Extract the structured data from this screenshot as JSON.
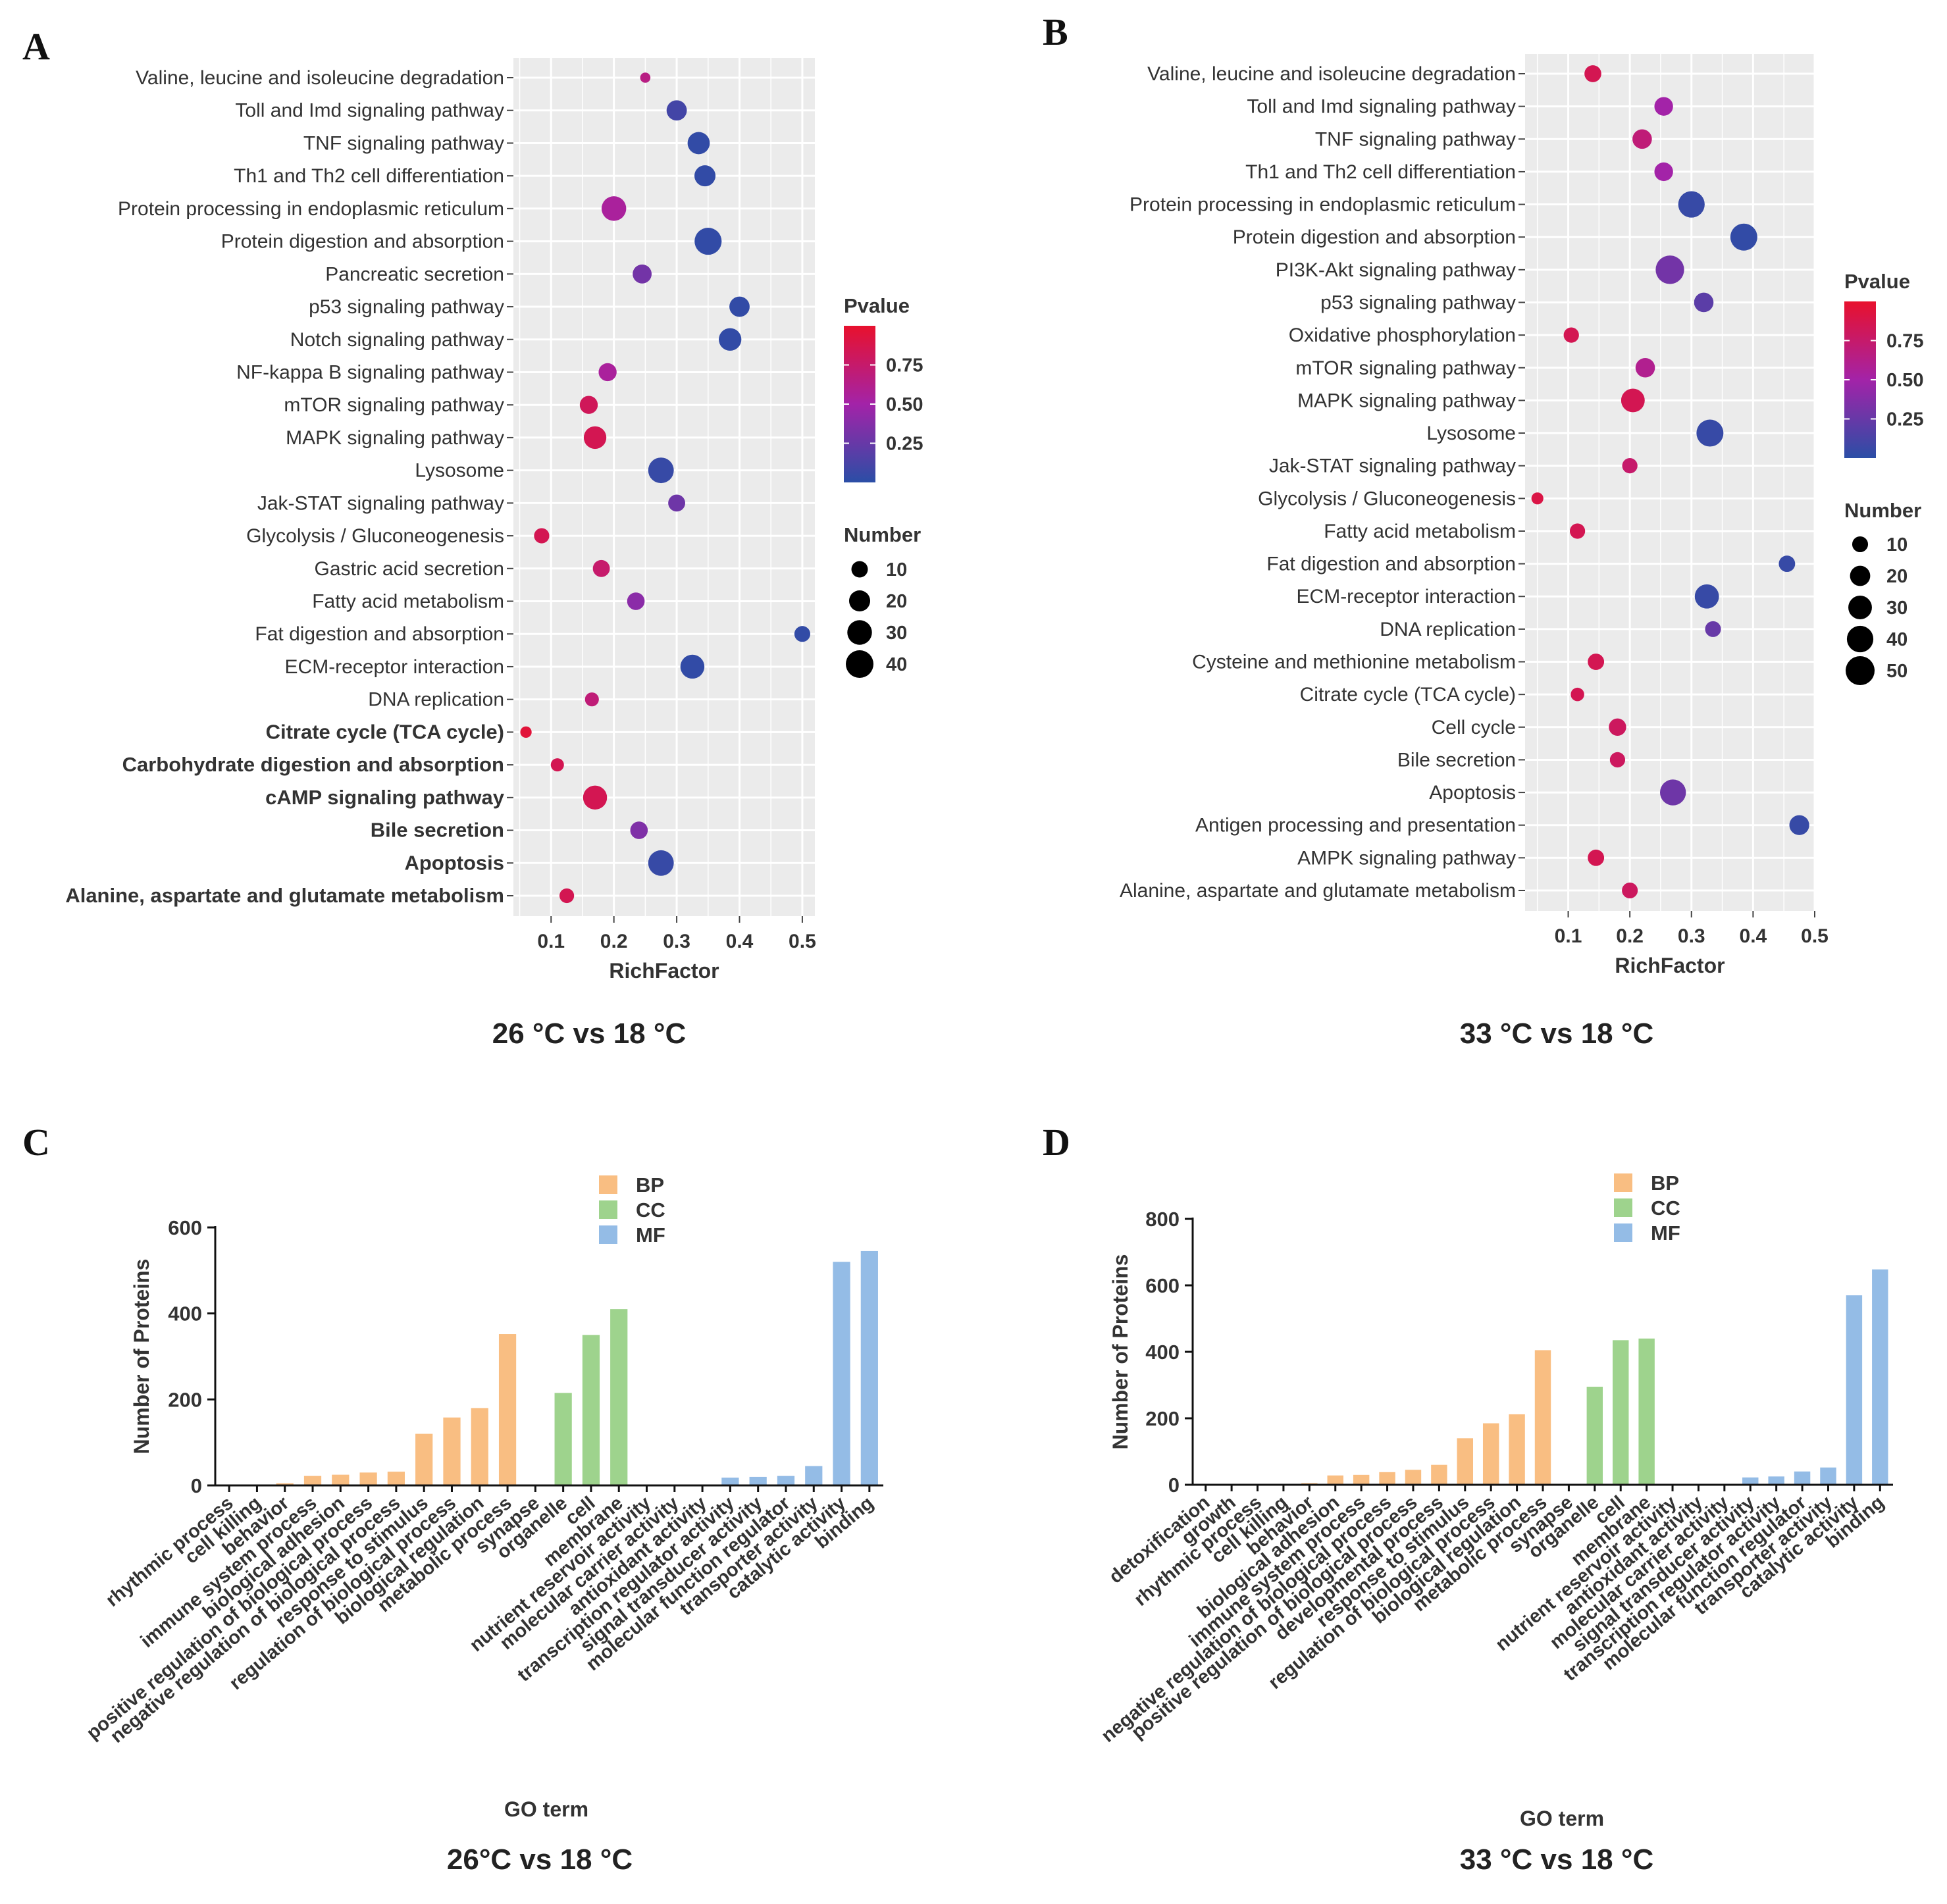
{
  "colors": {
    "pvalue_low": "#2B4EA6",
    "pvalue_mid": "#A323A8",
    "pvalue_high": "#E8112D",
    "bp": "#F9BE82",
    "cc": "#9ED38D",
    "mf": "#94BCE6",
    "panel_bg": "#EBEBEB"
  },
  "chart_data": [
    {
      "id": "A",
      "type": "scatter",
      "panel_label": "A",
      "caption": "26 °C vs 18 °C",
      "xlabel": "RichFactor",
      "xlim": [
        0.04,
        0.52
      ],
      "xticks": [
        0.1,
        0.2,
        0.3,
        0.4,
        0.5
      ],
      "xtick_labels": [
        "0.1",
        "0.2",
        "0.3",
        "0.4",
        "0.5"
      ],
      "legend_color_title": "Pvalue",
      "legend_color_ticks": [
        "0.75",
        "0.50",
        "0.25"
      ],
      "legend_size_title": "Number",
      "legend_size_entries": [
        "10",
        "20",
        "30",
        "40"
      ],
      "legend_size_values": [
        10,
        20,
        30,
        40
      ],
      "bold_from_index": 20,
      "points": [
        {
          "term": "Valine, leucine and isoleucine degradation",
          "rich": 0.25,
          "pvalue": 0.65,
          "number": 2
        },
        {
          "term": "Toll and Imd signaling pathway",
          "rich": 0.3,
          "pvalue": 0.1,
          "number": 18
        },
        {
          "term": "TNF signaling pathway",
          "rich": 0.335,
          "pvalue": 0.03,
          "number": 23
        },
        {
          "term": "Th1 and Th2 cell differentiation",
          "rich": 0.345,
          "pvalue": 0.03,
          "number": 20
        },
        {
          "term": "Protein processing in endoplasmic reticulum",
          "rich": 0.2,
          "pvalue": 0.55,
          "number": 30
        },
        {
          "term": "Protein digestion and absorption",
          "rich": 0.35,
          "pvalue": 0.03,
          "number": 38
        },
        {
          "term": "Pancreatic secretion",
          "rich": 0.245,
          "pvalue": 0.3,
          "number": 15
        },
        {
          "term": "p53 signaling pathway",
          "rich": 0.4,
          "pvalue": 0.03,
          "number": 18
        },
        {
          "term": "Notch signaling pathway",
          "rich": 0.385,
          "pvalue": 0.03,
          "number": 24
        },
        {
          "term": "NF-kappa B signaling pathway",
          "rich": 0.19,
          "pvalue": 0.55,
          "number": 13
        },
        {
          "term": "mTOR signaling pathway",
          "rich": 0.16,
          "pvalue": 0.82,
          "number": 13
        },
        {
          "term": "MAPK signaling pathway",
          "rich": 0.17,
          "pvalue": 0.85,
          "number": 24
        },
        {
          "term": "Lysosome",
          "rich": 0.275,
          "pvalue": 0.05,
          "number": 33
        },
        {
          "term": "Jak-STAT signaling pathway",
          "rich": 0.3,
          "pvalue": 0.28,
          "number": 11
        },
        {
          "term": "Glycolysis / Gluconeogenesis",
          "rich": 0.085,
          "pvalue": 0.85,
          "number": 8
        },
        {
          "term": "Gastric acid secretion",
          "rich": 0.18,
          "pvalue": 0.75,
          "number": 11
        },
        {
          "term": "Fatty acid metabolism",
          "rich": 0.235,
          "pvalue": 0.4,
          "number": 12
        },
        {
          "term": "Fat digestion and absorption",
          "rich": 0.5,
          "pvalue": 0.03,
          "number": 9
        },
        {
          "term": "ECM-receptor interaction",
          "rich": 0.325,
          "pvalue": 0.03,
          "number": 28
        },
        {
          "term": "DNA replication",
          "rich": 0.165,
          "pvalue": 0.7,
          "number": 6
        },
        {
          "term": "Citrate cycle (TCA cycle)",
          "rich": 0.06,
          "pvalue": 0.95,
          "number": 3
        },
        {
          "term": "Carbohydrate digestion and absorption",
          "rich": 0.11,
          "pvalue": 0.85,
          "number": 5
        },
        {
          "term": "cAMP signaling pathway",
          "rich": 0.17,
          "pvalue": 0.85,
          "number": 28
        },
        {
          "term": "Bile secretion",
          "rich": 0.24,
          "pvalue": 0.35,
          "number": 12
        },
        {
          "term": "Apoptosis",
          "rich": 0.275,
          "pvalue": 0.05,
          "number": 33
        },
        {
          "term": "Alanine, aspartate and glutamate metabolism",
          "rich": 0.125,
          "pvalue": 0.85,
          "number": 7
        }
      ]
    },
    {
      "id": "B",
      "type": "scatter",
      "panel_label": "B",
      "caption": "33 °C vs 18 °C",
      "xlabel": "RichFactor",
      "xlim": [
        0.03,
        0.5
      ],
      "xticks": [
        0.1,
        0.2,
        0.3,
        0.4,
        0.5
      ],
      "xtick_labels": [
        "0.1",
        "0.2",
        "0.3",
        "0.4",
        "0.5"
      ],
      "legend_color_title": "Pvalue",
      "legend_color_ticks": [
        "0.75",
        "0.50",
        "0.25"
      ],
      "legend_size_title": "Number",
      "legend_size_entries": [
        "10",
        "20",
        "30",
        "40",
        "50"
      ],
      "legend_size_values": [
        10,
        20,
        30,
        40,
        50
      ],
      "bold_from_index": 99,
      "points": [
        {
          "term": "Valine, leucine and isoleucine degradation",
          "rich": 0.14,
          "pvalue": 0.85,
          "number": 12
        },
        {
          "term": "Toll and Imd signaling pathway",
          "rich": 0.255,
          "pvalue": 0.5,
          "number": 16
        },
        {
          "term": "TNF signaling pathway",
          "rich": 0.22,
          "pvalue": 0.7,
          "number": 18
        },
        {
          "term": "Th1 and Th2 cell differentiation",
          "rich": 0.255,
          "pvalue": 0.5,
          "number": 16
        },
        {
          "term": "Protein processing in endoplasmic reticulum",
          "rich": 0.3,
          "pvalue": 0.05,
          "number": 40
        },
        {
          "term": "Protein digestion and absorption",
          "rich": 0.385,
          "pvalue": 0.03,
          "number": 42
        },
        {
          "term": "PI3K-Akt signaling pathway",
          "rich": 0.265,
          "pvalue": 0.3,
          "number": 48
        },
        {
          "term": "p53 signaling pathway",
          "rich": 0.32,
          "pvalue": 0.2,
          "number": 18
        },
        {
          "term": "Oxidative phosphorylation",
          "rich": 0.105,
          "pvalue": 0.85,
          "number": 9
        },
        {
          "term": "mTOR signaling pathway",
          "rich": 0.225,
          "pvalue": 0.6,
          "number": 18
        },
        {
          "term": "MAPK signaling pathway",
          "rich": 0.205,
          "pvalue": 0.85,
          "number": 30
        },
        {
          "term": "Lysosome",
          "rich": 0.33,
          "pvalue": 0.05,
          "number": 42
        },
        {
          "term": "Jak-STAT signaling pathway",
          "rich": 0.2,
          "pvalue": 0.75,
          "number": 9
        },
        {
          "term": "Glycolysis / Gluconeogenesis",
          "rich": 0.05,
          "pvalue": 0.9,
          "number": 4
        },
        {
          "term": "Fatty acid metabolism",
          "rich": 0.115,
          "pvalue": 0.85,
          "number": 9
        },
        {
          "term": "Fat digestion and absorption",
          "rich": 0.455,
          "pvalue": 0.05,
          "number": 11
        },
        {
          "term": "ECM-receptor interaction",
          "rich": 0.325,
          "pvalue": 0.05,
          "number": 32
        },
        {
          "term": "DNA replication",
          "rich": 0.335,
          "pvalue": 0.25,
          "number": 10
        },
        {
          "term": "Cysteine and methionine metabolism",
          "rich": 0.145,
          "pvalue": 0.85,
          "number": 11
        },
        {
          "term": "Citrate cycle (TCA cycle)",
          "rich": 0.115,
          "pvalue": 0.85,
          "number": 6
        },
        {
          "term": "Cell cycle",
          "rich": 0.18,
          "pvalue": 0.8,
          "number": 13
        },
        {
          "term": "Bile secretion",
          "rich": 0.18,
          "pvalue": 0.8,
          "number": 9
        },
        {
          "term": "Apoptosis",
          "rich": 0.27,
          "pvalue": 0.28,
          "number": 38
        },
        {
          "term": "Antigen processing and presentation",
          "rich": 0.475,
          "pvalue": 0.05,
          "number": 19
        },
        {
          "term": "AMPK signaling pathway",
          "rich": 0.145,
          "pvalue": 0.85,
          "number": 11
        },
        {
          "term": "Alanine, aspartate and glutamate metabolism",
          "rich": 0.2,
          "pvalue": 0.8,
          "number": 10
        }
      ]
    },
    {
      "id": "C",
      "type": "bar",
      "panel_label": "C",
      "caption": "26°C vs 18 °C",
      "xlabel": "GO term",
      "ylabel": "Number of Proteins",
      "ylim": [
        0,
        600
      ],
      "yticks": [
        0,
        200,
        400,
        600
      ],
      "ytick_labels": [
        "0",
        "200",
        "400",
        "600"
      ],
      "legend": [
        {
          "key": "BP",
          "label": "BP"
        },
        {
          "key": "CC",
          "label": "CC"
        },
        {
          "key": "MF",
          "label": "MF"
        }
      ],
      "categories": [
        "rhythmic process",
        "cell killing",
        "behavior",
        "immune system process",
        "biological adhesion",
        "positive regulation of biological process",
        "negative regulation of biological process",
        "response to stimulus",
        "regulation of biological process",
        "biological regulation",
        "metabolic process",
        "synapse",
        "organelle",
        "cell",
        "membrane",
        "nutrient reservoir activity",
        "molecular carrier activity",
        "antioxidant activity",
        "transcription regulator activity",
        "signal transducer activity",
        "molecular function regulator",
        "transporter activity",
        "catalytic activity",
        "binding"
      ],
      "groups": [
        "BP",
        "BP",
        "BP",
        "BP",
        "BP",
        "BP",
        "BP",
        "BP",
        "BP",
        "BP",
        "BP",
        "CC",
        "CC",
        "CC",
        "CC",
        "MF",
        "MF",
        "MF",
        "MF",
        "MF",
        "MF",
        "MF",
        "MF",
        "MF"
      ],
      "values": [
        1,
        1,
        5,
        22,
        25,
        30,
        32,
        120,
        158,
        180,
        352,
        2,
        215,
        350,
        410,
        1,
        1,
        2,
        18,
        20,
        22,
        45,
        520,
        545
      ]
    },
    {
      "id": "D",
      "type": "bar",
      "panel_label": "D",
      "caption": "33 °C vs 18 °C",
      "xlabel": "GO term",
      "ylabel": "Number of Proteins",
      "ylim": [
        0,
        800
      ],
      "yticks": [
        0,
        200,
        400,
        600,
        800
      ],
      "ytick_labels": [
        "0",
        "200",
        "400",
        "600",
        "800"
      ],
      "legend": [
        {
          "key": "BP",
          "label": "BP"
        },
        {
          "key": "CC",
          "label": "CC"
        },
        {
          "key": "MF",
          "label": "MF"
        }
      ],
      "categories": [
        "detoxification",
        "growth",
        "rhythmic process",
        "cell killing",
        "behavior",
        "biological adhesion",
        "immune system process",
        "negative regulation of biological process",
        "positive regulation of biological process",
        "developmental process",
        "response to stimulus",
        "regulation of biological process",
        "biological regulation",
        "metabolic process",
        "synapse",
        "organelle",
        "cell",
        "membrane",
        "nutrient reservoir activity",
        "antioxidant activity",
        "molecular carrier activity",
        "signal transducer activity",
        "transcription regulator activity",
        "molecular function regulator",
        "transporter activity",
        "catalytic activity",
        "binding"
      ],
      "groups": [
        "BP",
        "BP",
        "BP",
        "BP",
        "BP",
        "BP",
        "BP",
        "BP",
        "BP",
        "BP",
        "BP",
        "BP",
        "BP",
        "BP",
        "CC",
        "CC",
        "CC",
        "CC",
        "MF",
        "MF",
        "MF",
        "MF",
        "MF",
        "MF",
        "MF",
        "MF",
        "MF"
      ],
      "values": [
        1,
        1,
        1,
        2,
        5,
        28,
        30,
        38,
        45,
        60,
        140,
        185,
        212,
        405,
        2,
        295,
        435,
        440,
        1,
        1,
        2,
        22,
        25,
        40,
        52,
        570,
        648
      ]
    }
  ]
}
